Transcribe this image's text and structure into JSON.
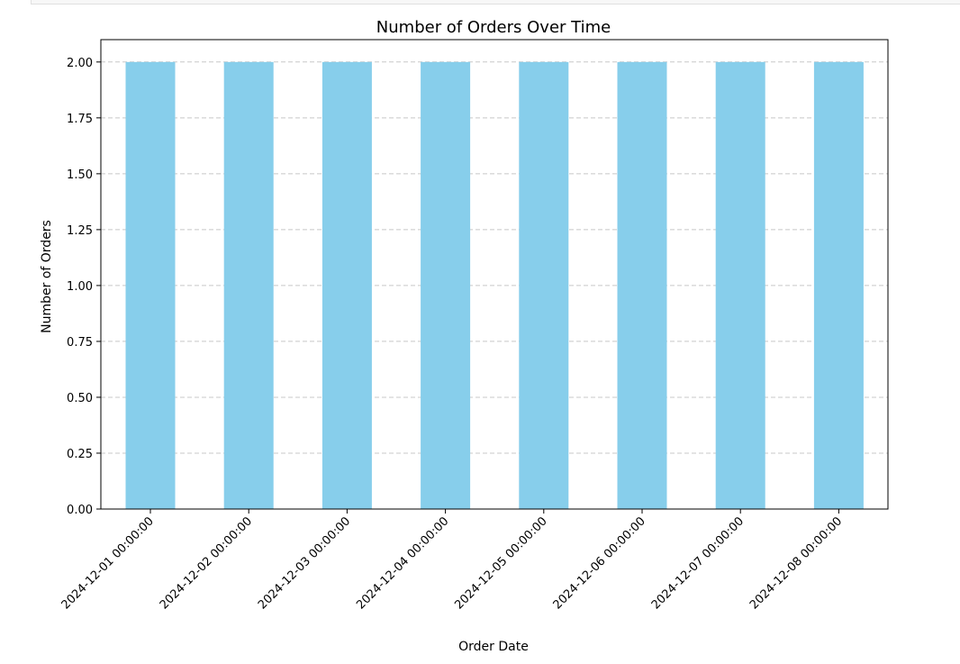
{
  "chart_data": {
    "type": "bar",
    "title": "Number of Orders Over Time",
    "xlabel": "Order Date",
    "ylabel": "Number of Orders",
    "categories": [
      "2024-12-01 00:00:00",
      "2024-12-02 00:00:00",
      "2024-12-03 00:00:00",
      "2024-12-04 00:00:00",
      "2024-12-05 00:00:00",
      "2024-12-06 00:00:00",
      "2024-12-07 00:00:00",
      "2024-12-08 00:00:00"
    ],
    "values": [
      2,
      2,
      2,
      2,
      2,
      2,
      2,
      2
    ],
    "ylim": [
      0,
      2.1
    ],
    "yticks": [
      0.0,
      0.25,
      0.5,
      0.75,
      1.0,
      1.25,
      1.5,
      1.75,
      2.0
    ],
    "ytick_labels": [
      "0.00",
      "0.25",
      "0.50",
      "0.75",
      "1.00",
      "1.25",
      "1.50",
      "1.75",
      "2.00"
    ],
    "grid": {
      "axis": "y",
      "style": "dashed",
      "color": "#c8c8c8"
    },
    "bar_color": "#87ceeb",
    "legend": "none"
  }
}
